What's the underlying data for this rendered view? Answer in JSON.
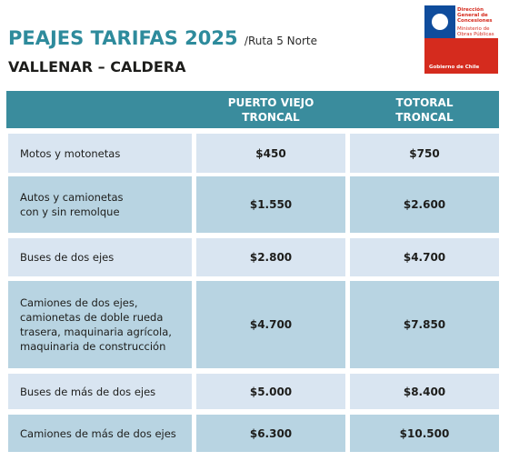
{
  "header": {
    "title": "PEAJES TARIFAS 2025",
    "subtitle": "/Ruta 5 Norte",
    "route": "VALLENAR – CALDERA"
  },
  "logo": {
    "agency": [
      "Dirección",
      "General de",
      "Concesiones"
    ],
    "ministry": [
      "Ministerio de",
      "Obras Públicas"
    ],
    "government": "Gobierno de Chile"
  },
  "table": {
    "columns": [
      [
        "PUERTO VIEJO",
        "TRONCAL"
      ],
      [
        "TOTORAL",
        "TRONCAL"
      ]
    ],
    "rows": [
      {
        "category": [
          "Motos y motonetas"
        ],
        "prices": [
          "$450",
          "$750"
        ]
      },
      {
        "category": [
          "Autos y camionetas",
          "con y sin remolque"
        ],
        "prices": [
          "$1.550",
          "$2.600"
        ]
      },
      {
        "category": [
          "Buses de dos ejes"
        ],
        "prices": [
          "$2.800",
          "$4.700"
        ]
      },
      {
        "category": [
          "Camiones de dos ejes,",
          "camionetas de doble rueda",
          "trasera, maquinaria agrícola,",
          "maquinaria de construcción"
        ],
        "prices": [
          "$4.700",
          "$7.850"
        ]
      },
      {
        "category": [
          "Buses de más de dos ejes"
        ],
        "prices": [
          "$5.000",
          "$8.400"
        ]
      },
      {
        "category": [
          "Camiones de más de dos ejes"
        ],
        "prices": [
          "$6.300",
          "$10.500"
        ]
      }
    ]
  }
}
